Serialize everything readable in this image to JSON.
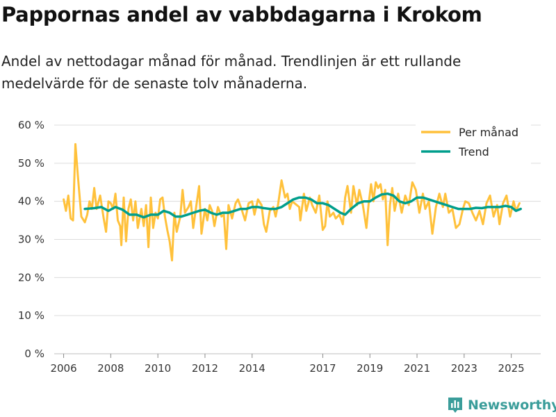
{
  "title": "Pappornas andel av vabbdagarna i Krokom",
  "subtitle": "Andel av nettodagar månad för månad. Trendlinjen är ett rullande medelvärde för de senaste tolv månaderna.",
  "brand": {
    "name": "Newsworthy",
    "icon": "bar-chart-logo-icon"
  },
  "colors": {
    "monthly": "#FFC13B",
    "trend": "#009E8C",
    "grid": "#dcdcdc",
    "brand": "#3a9d9a"
  },
  "chart_data": {
    "type": "line",
    "title": "Pappornas andel av vabbdagarna i Krokom",
    "xlabel": "",
    "ylabel": "",
    "xlim": [
      2005.6,
      2026.25
    ],
    "ylim": [
      0,
      60
    ],
    "y_ticks": [
      0,
      10,
      20,
      30,
      40,
      50,
      60
    ],
    "y_tick_labels": [
      "0 %",
      "10 %",
      "20 %",
      "30 %",
      "40 %",
      "50 %",
      "60 %"
    ],
    "x_ticks": [
      2006,
      2008,
      2010,
      2012,
      2014,
      2017,
      2019,
      2021,
      2023,
      2025
    ],
    "x_tick_labels": [
      "2006",
      "2008",
      "2010",
      "2012",
      "2014",
      "2017",
      "2019",
      "2021",
      "2023",
      "2025"
    ],
    "grid": true,
    "legend": {
      "position": "top-right",
      "entries": [
        "Per månad",
        "Trend"
      ]
    },
    "series": [
      {
        "name": "Per månad",
        "points": [
          [
            2006.0,
            40.5
          ],
          [
            2006.1,
            37.5
          ],
          [
            2006.2,
            41.5
          ],
          [
            2006.3,
            35.5
          ],
          [
            2006.4,
            35.0
          ],
          [
            2006.5,
            55.0
          ],
          [
            2006.6,
            47.0
          ],
          [
            2006.75,
            36.0
          ],
          [
            2006.9,
            34.5
          ],
          [
            2007.0,
            36.5
          ],
          [
            2007.1,
            40.0
          ],
          [
            2007.2,
            38.0
          ],
          [
            2007.3,
            43.5
          ],
          [
            2007.4,
            38.0
          ],
          [
            2007.55,
            41.5
          ],
          [
            2007.7,
            35.5
          ],
          [
            2007.8,
            32.0
          ],
          [
            2007.9,
            40.0
          ],
          [
            2008.0,
            39.5
          ],
          [
            2008.1,
            38.0
          ],
          [
            2008.2,
            42.0
          ],
          [
            2008.3,
            35.0
          ],
          [
            2008.4,
            33.5
          ],
          [
            2008.45,
            28.5
          ],
          [
            2008.55,
            41.0
          ],
          [
            2008.65,
            29.5
          ],
          [
            2008.75,
            38.0
          ],
          [
            2008.85,
            40.5
          ],
          [
            2008.95,
            35.0
          ],
          [
            2009.05,
            40.0
          ],
          [
            2009.15,
            33.0
          ],
          [
            2009.3,
            38.0
          ],
          [
            2009.4,
            33.5
          ],
          [
            2009.5,
            39.0
          ],
          [
            2009.6,
            28.0
          ],
          [
            2009.7,
            41.0
          ],
          [
            2009.8,
            33.0
          ],
          [
            2009.9,
            37.0
          ],
          [
            2010.0,
            35.5
          ],
          [
            2010.1,
            40.5
          ],
          [
            2010.2,
            41.0
          ],
          [
            2010.3,
            36.0
          ],
          [
            2010.4,
            32.5
          ],
          [
            2010.5,
            29.5
          ],
          [
            2010.6,
            24.5
          ],
          [
            2010.7,
            37.0
          ],
          [
            2010.8,
            32.0
          ],
          [
            2010.95,
            36.0
          ],
          [
            2011.05,
            43.0
          ],
          [
            2011.15,
            37.0
          ],
          [
            2011.3,
            38.5
          ],
          [
            2011.4,
            40.0
          ],
          [
            2011.5,
            33.0
          ],
          [
            2011.6,
            37.5
          ],
          [
            2011.75,
            44.0
          ],
          [
            2011.85,
            31.5
          ],
          [
            2012.0,
            38.0
          ],
          [
            2012.1,
            35.0
          ],
          [
            2012.2,
            39.0
          ],
          [
            2012.3,
            37.5
          ],
          [
            2012.4,
            33.5
          ],
          [
            2012.55,
            38.5
          ],
          [
            2012.7,
            36.0
          ],
          [
            2012.8,
            36.5
          ],
          [
            2012.9,
            27.5
          ],
          [
            2013.0,
            39.0
          ],
          [
            2013.15,
            35.5
          ],
          [
            2013.3,
            39.5
          ],
          [
            2013.4,
            40.5
          ],
          [
            2013.55,
            38.0
          ],
          [
            2013.7,
            35.0
          ],
          [
            2013.85,
            39.5
          ],
          [
            2014.0,
            40.0
          ],
          [
            2014.1,
            36.5
          ],
          [
            2014.25,
            40.5
          ],
          [
            2014.4,
            39.0
          ],
          [
            2014.5,
            34.0
          ],
          [
            2014.6,
            32.0
          ],
          [
            2014.75,
            37.5
          ],
          [
            2014.9,
            38.5
          ],
          [
            2015.0,
            36.0
          ],
          [
            2015.1,
            39.0
          ],
          [
            2015.25,
            45.5
          ],
          [
            2015.4,
            41.0
          ],
          [
            2015.5,
            42.0
          ],
          [
            2015.6,
            38.0
          ],
          [
            2015.7,
            40.0
          ],
          [
            2015.8,
            39.5
          ],
          [
            2016.0,
            38.5
          ],
          [
            2016.05,
            35.0
          ],
          [
            2016.2,
            42.0
          ],
          [
            2016.3,
            37.5
          ],
          [
            2016.45,
            41.0
          ],
          [
            2016.55,
            39.0
          ],
          [
            2016.7,
            37.0
          ],
          [
            2016.85,
            41.5
          ],
          [
            2017.0,
            32.5
          ],
          [
            2017.1,
            33.5
          ],
          [
            2017.2,
            40.0
          ],
          [
            2017.3,
            36.0
          ],
          [
            2017.45,
            37.0
          ],
          [
            2017.55,
            35.5
          ],
          [
            2017.7,
            36.5
          ],
          [
            2017.85,
            34.0
          ],
          [
            2017.95,
            41.0
          ],
          [
            2018.05,
            44.0
          ],
          [
            2018.2,
            37.0
          ],
          [
            2018.3,
            44.0
          ],
          [
            2018.45,
            39.0
          ],
          [
            2018.55,
            43.0
          ],
          [
            2018.7,
            39.0
          ],
          [
            2018.85,
            33.0
          ],
          [
            2018.95,
            39.5
          ],
          [
            2019.05,
            44.5
          ],
          [
            2019.15,
            40.0
          ],
          [
            2019.25,
            45.0
          ],
          [
            2019.35,
            43.5
          ],
          [
            2019.45,
            44.5
          ],
          [
            2019.55,
            40.5
          ],
          [
            2019.65,
            43.0
          ],
          [
            2019.75,
            28.5
          ],
          [
            2019.85,
            39.0
          ],
          [
            2019.95,
            43.5
          ],
          [
            2020.05,
            37.5
          ],
          [
            2020.2,
            42.0
          ],
          [
            2020.35,
            37.0
          ],
          [
            2020.5,
            41.5
          ],
          [
            2020.65,
            39.0
          ],
          [
            2020.8,
            45.0
          ],
          [
            2020.95,
            43.0
          ],
          [
            2021.1,
            37.0
          ],
          [
            2021.25,
            42.0
          ],
          [
            2021.35,
            38.0
          ],
          [
            2021.5,
            40.0
          ],
          [
            2021.65,
            31.5
          ],
          [
            2021.8,
            38.5
          ],
          [
            2021.95,
            42.0
          ],
          [
            2022.1,
            38.5
          ],
          [
            2022.2,
            42.0
          ],
          [
            2022.35,
            37.0
          ],
          [
            2022.5,
            38.0
          ],
          [
            2022.65,
            33.0
          ],
          [
            2022.8,
            34.0
          ],
          [
            2022.95,
            38.0
          ],
          [
            2023.05,
            40.0
          ],
          [
            2023.2,
            39.5
          ],
          [
            2023.35,
            37.0
          ],
          [
            2023.5,
            35.0
          ],
          [
            2023.65,
            37.5
          ],
          [
            2023.8,
            34.0
          ],
          [
            2023.95,
            39.5
          ],
          [
            2024.1,
            41.5
          ],
          [
            2024.25,
            36.0
          ],
          [
            2024.4,
            39.0
          ],
          [
            2024.5,
            34.0
          ],
          [
            2024.65,
            39.5
          ],
          [
            2024.8,
            41.5
          ],
          [
            2024.95,
            36.0
          ],
          [
            2025.1,
            40.0
          ],
          [
            2025.2,
            37.5
          ],
          [
            2025.35,
            39.5
          ]
        ]
      },
      {
        "name": "Trend",
        "points": [
          [
            2006.9,
            38.0
          ],
          [
            2007.3,
            38.2
          ],
          [
            2007.6,
            38.5
          ],
          [
            2007.9,
            37.5
          ],
          [
            2008.2,
            38.5
          ],
          [
            2008.5,
            37.8
          ],
          [
            2008.8,
            36.5
          ],
          [
            2009.1,
            36.5
          ],
          [
            2009.4,
            35.8
          ],
          [
            2009.7,
            36.5
          ],
          [
            2010.0,
            36.5
          ],
          [
            2010.25,
            37.5
          ],
          [
            2010.5,
            37.0
          ],
          [
            2010.75,
            36.0
          ],
          [
            2011.0,
            36.0
          ],
          [
            2011.25,
            36.5
          ],
          [
            2011.5,
            37.0
          ],
          [
            2011.75,
            37.5
          ],
          [
            2012.0,
            37.8
          ],
          [
            2012.25,
            37.0
          ],
          [
            2012.5,
            36.5
          ],
          [
            2012.75,
            37.0
          ],
          [
            2013.0,
            37.0
          ],
          [
            2013.25,
            37.5
          ],
          [
            2013.5,
            38.0
          ],
          [
            2013.75,
            38.0
          ],
          [
            2014.0,
            38.5
          ],
          [
            2014.25,
            38.5
          ],
          [
            2014.5,
            38.2
          ],
          [
            2014.75,
            38.0
          ],
          [
            2015.0,
            38.0
          ],
          [
            2015.25,
            38.5
          ],
          [
            2015.5,
            39.5
          ],
          [
            2015.75,
            40.5
          ],
          [
            2016.0,
            41.0
          ],
          [
            2016.25,
            41.0
          ],
          [
            2016.5,
            40.5
          ],
          [
            2016.75,
            39.5
          ],
          [
            2017.0,
            39.5
          ],
          [
            2017.25,
            39.0
          ],
          [
            2017.5,
            38.0
          ],
          [
            2017.75,
            37.0
          ],
          [
            2017.95,
            36.5
          ],
          [
            2018.2,
            38.0
          ],
          [
            2018.5,
            39.5
          ],
          [
            2018.75,
            40.0
          ],
          [
            2019.0,
            40.0
          ],
          [
            2019.25,
            41.0
          ],
          [
            2019.5,
            41.8
          ],
          [
            2019.75,
            42.0
          ],
          [
            2020.0,
            41.5
          ],
          [
            2020.25,
            40.0
          ],
          [
            2020.5,
            39.5
          ],
          [
            2020.75,
            40.0
          ],
          [
            2021.0,
            41.0
          ],
          [
            2021.25,
            41.0
          ],
          [
            2021.5,
            40.5
          ],
          [
            2021.75,
            40.0
          ],
          [
            2022.0,
            39.5
          ],
          [
            2022.25,
            39.0
          ],
          [
            2022.5,
            38.5
          ],
          [
            2022.75,
            38.0
          ],
          [
            2023.0,
            38.0
          ],
          [
            2023.25,
            38.0
          ],
          [
            2023.5,
            38.3
          ],
          [
            2023.75,
            38.2
          ],
          [
            2024.0,
            38.5
          ],
          [
            2024.25,
            38.5
          ],
          [
            2024.5,
            38.5
          ],
          [
            2024.75,
            38.8
          ],
          [
            2025.0,
            38.5
          ],
          [
            2025.2,
            37.5
          ],
          [
            2025.4,
            38.0
          ]
        ]
      }
    ]
  }
}
